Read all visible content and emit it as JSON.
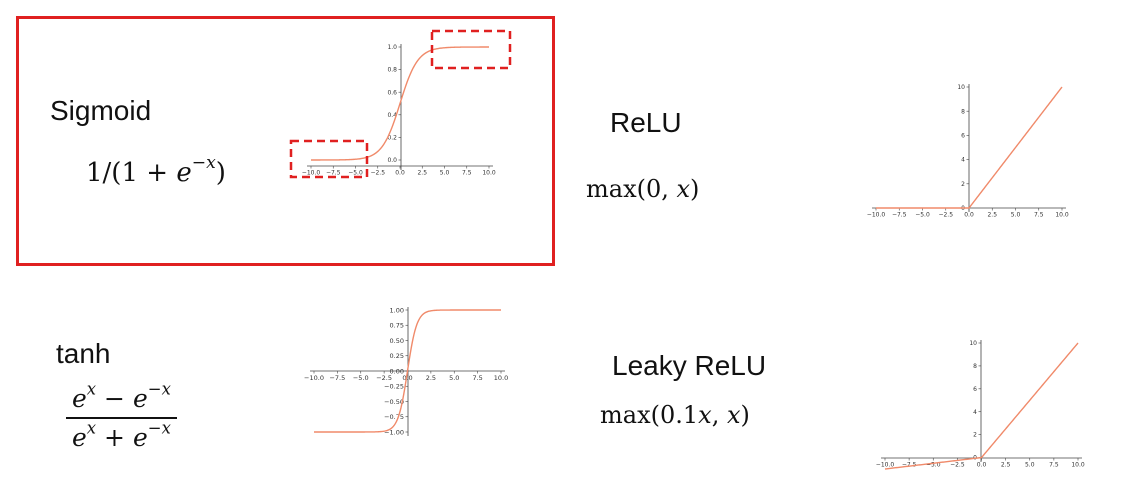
{
  "panels": {
    "sigmoid": {
      "name": "Sigmoid",
      "formula_main": "1/(1 + ",
      "formula_base": "e",
      "formula_exp": "−x",
      "formula_close": ")"
    },
    "relu": {
      "name": "ReLU",
      "formula_pre": "max(0, ",
      "formula_var": "x",
      "formula_post": ")"
    },
    "tanh": {
      "name": "tanh",
      "num_base1": "e",
      "num_exp1": "x",
      "num_op": " − ",
      "num_base2": "e",
      "num_exp2": "−x",
      "den_base1": "e",
      "den_exp1": "x",
      "den_op": " + ",
      "den_base2": "e",
      "den_exp2": "−x"
    },
    "leaky": {
      "name": "Leaky ReLU",
      "formula_pre": "max(0.1",
      "formula_var1": "x",
      "formula_mid": ", ",
      "formula_var2": "x",
      "formula_post": ")"
    }
  },
  "chart_data": [
    {
      "type": "line",
      "id": "sigmoid",
      "function": "1/(1+exp(-x))",
      "xlim": [
        -10,
        10
      ],
      "ylim": [
        0,
        1
      ],
      "xticks": [
        "-10.0",
        "-7.5",
        "-5.0",
        "-2.5",
        "0.0",
        "2.5",
        "5.0",
        "7.5",
        "10.0"
      ],
      "yticks": [
        "0.0",
        "0.2",
        "0.4",
        "0.6",
        "0.8",
        "1.0"
      ],
      "color": "#f08a6a",
      "highlight_regions": [
        "saturated low region (x < -4)",
        "saturated high region (x > 4)"
      ],
      "highlight_color": "#e02020"
    },
    {
      "type": "line",
      "id": "relu",
      "function": "max(0,x)",
      "xlim": [
        -10,
        10
      ],
      "ylim": [
        0,
        10
      ],
      "xticks": [
        "-10.0",
        "-7.5",
        "-5.0",
        "-2.5",
        "0.0",
        "2.5",
        "5.0",
        "7.5",
        "10.0"
      ],
      "yticks": [
        "0",
        "2",
        "4",
        "6",
        "8",
        "10"
      ],
      "color": "#f08a6a"
    },
    {
      "type": "line",
      "id": "tanh",
      "function": "tanh(x)",
      "xlim": [
        -10,
        10
      ],
      "ylim": [
        -1,
        1
      ],
      "xticks": [
        "-10.0",
        "-7.5",
        "-5.0",
        "-2.5",
        "0.0",
        "2.5",
        "5.0",
        "7.5",
        "10.0"
      ],
      "yticks": [
        "1.00",
        "0.75",
        "0.50",
        "0.25",
        "0.00",
        "-0.25",
        "-0.50",
        "-0.75",
        "-1.00"
      ],
      "color": "#f08a6a"
    },
    {
      "type": "line",
      "id": "leaky",
      "function": "max(0.1x,x)",
      "xlim": [
        -10,
        10
      ],
      "ylim": [
        -1,
        10
      ],
      "xticks": [
        "-10.0",
        "-7.5",
        "-5.0",
        "-2.5",
        "0.0",
        "2.5",
        "5.0",
        "7.5",
        "10.0"
      ],
      "yticks": [
        "10",
        "8",
        "6",
        "4",
        "2",
        "0"
      ],
      "color": "#f08a6a"
    }
  ]
}
